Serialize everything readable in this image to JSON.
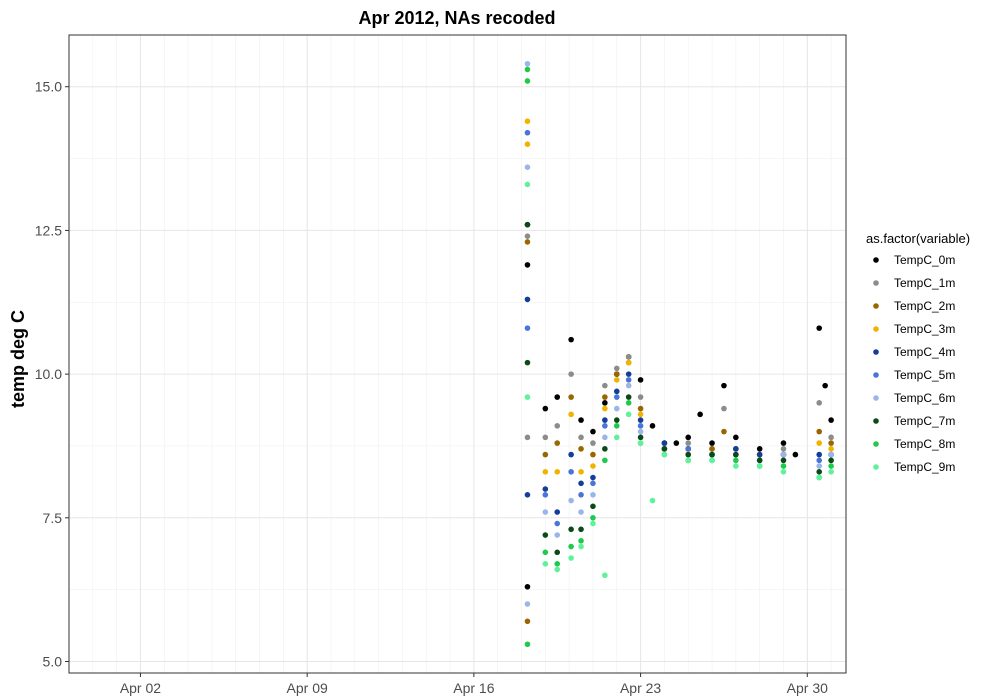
{
  "chart_data": {
    "type": "scatter",
    "title": "Apr 2012, NAs recoded",
    "xlabel": "",
    "ylabel": "temp deg C",
    "xlim": [
      "2012-03-30",
      "2012-05-01T15:00"
    ],
    "ylim": [
      4.8,
      15.9
    ],
    "x_ticks": [
      {
        "date": "2012-04-02",
        "label": "Apr 02"
      },
      {
        "date": "2012-04-09",
        "label": "Apr 09"
      },
      {
        "date": "2012-04-16",
        "label": "Apr 16"
      },
      {
        "date": "2012-04-23",
        "label": "Apr 23"
      },
      {
        "date": "2012-04-30",
        "label": "Apr 30"
      }
    ],
    "y_ticks": [
      {
        "value": 5.0,
        "label": "5.0"
      },
      {
        "value": 7.5,
        "label": "7.5"
      },
      {
        "value": 10.0,
        "label": "10.0"
      },
      {
        "value": 12.5,
        "label": "12.5"
      },
      {
        "value": 15.0,
        "label": "15.0"
      }
    ],
    "grid": true,
    "legend": {
      "title": "as.factor(variable)",
      "position": "right"
    },
    "series": [
      {
        "name": "TempC_0m",
        "color": "#000000",
        "points": [
          [
            "2012-04-18T06:00",
            12.6
          ],
          [
            "2012-04-18T06:00",
            11.9
          ],
          [
            "2012-04-18T06:00",
            6.3
          ],
          [
            "2012-04-19T00:00",
            9.4
          ],
          [
            "2012-04-19T12:00",
            9.6
          ],
          [
            "2012-04-20T02:00",
            10.6
          ],
          [
            "2012-04-20T12:00",
            9.2
          ],
          [
            "2012-04-21T00:00",
            9.0
          ],
          [
            "2012-04-21T12:00",
            9.5
          ],
          [
            "2012-04-22T00:00",
            10.0
          ],
          [
            "2012-04-22T12:00",
            10.3
          ],
          [
            "2012-04-23T00:00",
            9.9
          ],
          [
            "2012-04-23T12:00",
            9.1
          ],
          [
            "2012-04-24T00:00",
            8.8
          ],
          [
            "2012-04-24T12:00",
            8.8
          ],
          [
            "2012-04-25T00:00",
            8.9
          ],
          [
            "2012-04-25T12:00",
            9.3
          ],
          [
            "2012-04-26T00:00",
            8.8
          ],
          [
            "2012-04-26T12:00",
            9.8
          ],
          [
            "2012-04-27T00:00",
            8.9
          ],
          [
            "2012-04-28T00:00",
            8.7
          ],
          [
            "2012-04-29T00:00",
            8.8
          ],
          [
            "2012-04-29T12:00",
            8.6
          ],
          [
            "2012-04-30T12:00",
            10.8
          ],
          [
            "2012-04-30T18:00",
            9.8
          ],
          [
            "2012-05-01T00:00",
            9.2
          ]
        ]
      },
      {
        "name": "TempC_1m",
        "color": "#8c8c8c",
        "points": [
          [
            "2012-04-18T06:00",
            12.4
          ],
          [
            "2012-04-18T06:00",
            8.9
          ],
          [
            "2012-04-19T00:00",
            8.9
          ],
          [
            "2012-04-19T12:00",
            9.1
          ],
          [
            "2012-04-20T02:00",
            10.0
          ],
          [
            "2012-04-20T12:00",
            8.9
          ],
          [
            "2012-04-21T00:00",
            8.8
          ],
          [
            "2012-04-21T12:00",
            9.8
          ],
          [
            "2012-04-22T00:00",
            10.1
          ],
          [
            "2012-04-22T12:00",
            10.3
          ],
          [
            "2012-04-23T00:00",
            9.6
          ],
          [
            "2012-04-24T00:00",
            8.8
          ],
          [
            "2012-04-25T00:00",
            8.8
          ],
          [
            "2012-04-26T00:00",
            8.7
          ],
          [
            "2012-04-26T12:00",
            9.4
          ],
          [
            "2012-04-27T00:00",
            8.7
          ],
          [
            "2012-04-28T00:00",
            8.6
          ],
          [
            "2012-04-29T00:00",
            8.7
          ],
          [
            "2012-04-30T12:00",
            9.5
          ],
          [
            "2012-05-01T00:00",
            8.9
          ]
        ]
      },
      {
        "name": "TempC_2m",
        "color": "#996600",
        "points": [
          [
            "2012-04-18T06:00",
            12.3
          ],
          [
            "2012-04-18T06:00",
            5.7
          ],
          [
            "2012-04-19T00:00",
            8.6
          ],
          [
            "2012-04-19T12:00",
            8.8
          ],
          [
            "2012-04-20T02:00",
            9.6
          ],
          [
            "2012-04-20T12:00",
            8.7
          ],
          [
            "2012-04-21T00:00",
            8.6
          ],
          [
            "2012-04-21T12:00",
            9.6
          ],
          [
            "2012-04-22T00:00",
            10.0
          ],
          [
            "2012-04-22T12:00",
            10.2
          ],
          [
            "2012-04-23T00:00",
            9.4
          ],
          [
            "2012-04-24T00:00",
            8.7
          ],
          [
            "2012-04-25T00:00",
            8.7
          ],
          [
            "2012-04-26T00:00",
            8.7
          ],
          [
            "2012-04-26T12:00",
            9.0
          ],
          [
            "2012-04-27T00:00",
            8.7
          ],
          [
            "2012-04-28T00:00",
            8.6
          ],
          [
            "2012-04-29T00:00",
            8.6
          ],
          [
            "2012-04-30T12:00",
            9.0
          ],
          [
            "2012-05-01T00:00",
            8.8
          ]
        ]
      },
      {
        "name": "TempC_3m",
        "color": "#f0b400",
        "points": [
          [
            "2012-04-18T06:00",
            14.4
          ],
          [
            "2012-04-18T06:00",
            14.0
          ],
          [
            "2012-04-19T00:00",
            8.3
          ],
          [
            "2012-04-19T12:00",
            8.3
          ],
          [
            "2012-04-20T02:00",
            9.3
          ],
          [
            "2012-04-20T12:00",
            8.3
          ],
          [
            "2012-04-21T00:00",
            8.4
          ],
          [
            "2012-04-21T12:00",
            9.4
          ],
          [
            "2012-04-22T00:00",
            9.9
          ],
          [
            "2012-04-22T12:00",
            10.2
          ],
          [
            "2012-04-23T00:00",
            9.3
          ],
          [
            "2012-04-24T00:00",
            8.7
          ],
          [
            "2012-04-25T00:00",
            8.7
          ],
          [
            "2012-04-26T00:00",
            8.6
          ],
          [
            "2012-04-27T00:00",
            8.7
          ],
          [
            "2012-04-28T00:00",
            8.6
          ],
          [
            "2012-04-29T00:00",
            8.6
          ],
          [
            "2012-04-30T12:00",
            8.8
          ],
          [
            "2012-05-01T00:00",
            8.7
          ]
        ]
      },
      {
        "name": "TempC_4m",
        "color": "#123e9a",
        "points": [
          [
            "2012-04-18T06:00",
            11.3
          ],
          [
            "2012-04-18T06:00",
            7.9
          ],
          [
            "2012-04-19T00:00",
            8.0
          ],
          [
            "2012-04-19T12:00",
            7.6
          ],
          [
            "2012-04-20T02:00",
            8.6
          ],
          [
            "2012-04-20T12:00",
            8.1
          ],
          [
            "2012-04-21T00:00",
            8.2
          ],
          [
            "2012-04-21T12:00",
            9.2
          ],
          [
            "2012-04-22T00:00",
            9.7
          ],
          [
            "2012-04-22T12:00",
            10.0
          ],
          [
            "2012-04-23T00:00",
            9.2
          ],
          [
            "2012-04-24T00:00",
            8.8
          ],
          [
            "2012-04-25T00:00",
            8.7
          ],
          [
            "2012-04-26T00:00",
            8.6
          ],
          [
            "2012-04-27T00:00",
            8.7
          ],
          [
            "2012-04-28T00:00",
            8.6
          ],
          [
            "2012-04-29T00:00",
            8.6
          ],
          [
            "2012-04-30T12:00",
            8.6
          ],
          [
            "2012-05-01T00:00",
            8.6
          ]
        ]
      },
      {
        "name": "TempC_5m",
        "color": "#4a74d9",
        "points": [
          [
            "2012-04-18T06:00",
            14.2
          ],
          [
            "2012-04-18T06:00",
            10.8
          ],
          [
            "2012-04-19T00:00",
            7.9
          ],
          [
            "2012-04-19T12:00",
            7.4
          ],
          [
            "2012-04-20T02:00",
            8.3
          ],
          [
            "2012-04-20T12:00",
            7.9
          ],
          [
            "2012-04-21T00:00",
            8.1
          ],
          [
            "2012-04-21T12:00",
            9.1
          ],
          [
            "2012-04-22T00:00",
            9.6
          ],
          [
            "2012-04-22T12:00",
            9.9
          ],
          [
            "2012-04-23T00:00",
            9.1
          ],
          [
            "2012-04-24T00:00",
            8.7
          ],
          [
            "2012-04-25T00:00",
            8.7
          ],
          [
            "2012-04-26T00:00",
            8.6
          ],
          [
            "2012-04-27T00:00",
            8.6
          ],
          [
            "2012-04-28T00:00",
            8.5
          ],
          [
            "2012-04-29T00:00",
            8.6
          ],
          [
            "2012-04-30T12:00",
            8.5
          ],
          [
            "2012-05-01T00:00",
            8.6
          ]
        ]
      },
      {
        "name": "TempC_6m",
        "color": "#9bb5ea",
        "points": [
          [
            "2012-04-18T06:00",
            15.4
          ],
          [
            "2012-04-18T06:00",
            13.6
          ],
          [
            "2012-04-18T06:00",
            6.0
          ],
          [
            "2012-04-19T00:00",
            7.6
          ],
          [
            "2012-04-19T12:00",
            7.2
          ],
          [
            "2012-04-20T02:00",
            7.8
          ],
          [
            "2012-04-20T12:00",
            7.6
          ],
          [
            "2012-04-21T00:00",
            7.9
          ],
          [
            "2012-04-21T12:00",
            8.9
          ],
          [
            "2012-04-22T00:00",
            9.4
          ],
          [
            "2012-04-22T12:00",
            9.8
          ],
          [
            "2012-04-23T00:00",
            9.0
          ],
          [
            "2012-04-24T00:00",
            8.7
          ],
          [
            "2012-04-25T00:00",
            8.6
          ],
          [
            "2012-04-26T00:00",
            8.6
          ],
          [
            "2012-04-27T00:00",
            8.6
          ],
          [
            "2012-04-28T00:00",
            8.5
          ],
          [
            "2012-04-29T00:00",
            8.6
          ],
          [
            "2012-04-30T12:00",
            8.4
          ],
          [
            "2012-05-01T00:00",
            8.6
          ]
        ]
      },
      {
        "name": "TempC_7m",
        "color": "#0b4a16",
        "points": [
          [
            "2012-04-18T06:00",
            12.6
          ],
          [
            "2012-04-18T06:00",
            10.2
          ],
          [
            "2012-04-19T00:00",
            7.2
          ],
          [
            "2012-04-19T12:00",
            6.9
          ],
          [
            "2012-04-20T02:00",
            7.3
          ],
          [
            "2012-04-20T12:00",
            7.3
          ],
          [
            "2012-04-21T00:00",
            7.7
          ],
          [
            "2012-04-21T12:00",
            8.7
          ],
          [
            "2012-04-22T00:00",
            9.2
          ],
          [
            "2012-04-22T12:00",
            9.6
          ],
          [
            "2012-04-23T00:00",
            8.9
          ],
          [
            "2012-04-24T00:00",
            8.7
          ],
          [
            "2012-04-25T00:00",
            8.6
          ],
          [
            "2012-04-26T00:00",
            8.6
          ],
          [
            "2012-04-27T00:00",
            8.6
          ],
          [
            "2012-04-28T00:00",
            8.5
          ],
          [
            "2012-04-29T00:00",
            8.5
          ],
          [
            "2012-04-30T12:00",
            8.3
          ],
          [
            "2012-05-01T00:00",
            8.5
          ]
        ]
      },
      {
        "name": "TempC_8m",
        "color": "#1fc94a",
        "points": [
          [
            "2012-04-18T06:00",
            15.3
          ],
          [
            "2012-04-18T06:00",
            15.1
          ],
          [
            "2012-04-18T06:00",
            5.3
          ],
          [
            "2012-04-19T00:00",
            6.9
          ],
          [
            "2012-04-19T12:00",
            6.7
          ],
          [
            "2012-04-20T02:00",
            7.0
          ],
          [
            "2012-04-20T12:00",
            7.1
          ],
          [
            "2012-04-21T00:00",
            7.5
          ],
          [
            "2012-04-21T12:00",
            8.5
          ],
          [
            "2012-04-22T00:00",
            9.1
          ],
          [
            "2012-04-22T12:00",
            9.5
          ],
          [
            "2012-04-23T00:00",
            8.8
          ],
          [
            "2012-04-24T00:00",
            8.6
          ],
          [
            "2012-04-25T00:00",
            8.5
          ],
          [
            "2012-04-26T00:00",
            8.5
          ],
          [
            "2012-04-27T00:00",
            8.5
          ],
          [
            "2012-04-28T00:00",
            8.4
          ],
          [
            "2012-04-29T00:00",
            8.4
          ],
          [
            "2012-04-30T12:00",
            8.2
          ],
          [
            "2012-05-01T00:00",
            8.4
          ]
        ]
      },
      {
        "name": "TempC_9m",
        "color": "#5ef29a",
        "points": [
          [
            "2012-04-18T06:00",
            13.3
          ],
          [
            "2012-04-18T06:00",
            9.6
          ],
          [
            "2012-04-19T00:00",
            6.7
          ],
          [
            "2012-04-19T12:00",
            6.6
          ],
          [
            "2012-04-20T02:00",
            6.8
          ],
          [
            "2012-04-20T12:00",
            7.0
          ],
          [
            "2012-04-21T00:00",
            7.4
          ],
          [
            "2012-04-21T12:00",
            6.5
          ],
          [
            "2012-04-22T00:00",
            8.9
          ],
          [
            "2012-04-22T12:00",
            9.3
          ],
          [
            "2012-04-23T00:00",
            8.8
          ],
          [
            "2012-04-23T12:00",
            7.8
          ],
          [
            "2012-04-24T00:00",
            8.6
          ],
          [
            "2012-04-25T00:00",
            8.5
          ],
          [
            "2012-04-26T00:00",
            8.5
          ],
          [
            "2012-04-27T00:00",
            8.4
          ],
          [
            "2012-04-28T00:00",
            8.4
          ],
          [
            "2012-04-29T00:00",
            8.3
          ],
          [
            "2012-04-30T12:00",
            8.2
          ],
          [
            "2012-05-01T00:00",
            8.3
          ]
        ]
      }
    ]
  }
}
